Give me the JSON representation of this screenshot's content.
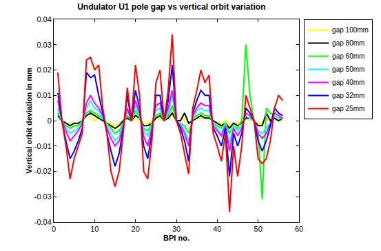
{
  "chart_data": {
    "type": "line",
    "title": "Undulator U1 pole gap vs vertical orbit variation",
    "x_label": "BPI no.",
    "y_label": "Vertical orbit deviation in mm",
    "x": [
      1,
      2,
      3,
      4,
      5,
      6,
      7,
      8,
      9,
      10,
      11,
      12,
      13,
      14,
      15,
      16,
      17,
      18,
      19,
      20,
      21,
      22,
      23,
      24,
      25,
      26,
      27,
      28,
      29,
      30,
      31,
      32,
      33,
      34,
      35,
      36,
      37,
      38,
      39,
      40,
      41,
      42,
      43,
      44,
      45,
      46,
      47,
      48,
      49,
      50,
      51,
      52,
      53,
      54,
      55,
      56
    ],
    "xlim": [
      0,
      60
    ],
    "xticks": [
      0,
      10,
      20,
      30,
      40,
      50,
      60
    ],
    "ylim": [
      -0.04,
      0.04
    ],
    "yticks": [
      -0.04,
      -0.03,
      -0.02,
      -0.01,
      0,
      0.01,
      0.02,
      0.03,
      0.04
    ],
    "grid": false,
    "legend": "top right",
    "series": [
      {
        "name": "gap 100mm",
        "color": "#ffff00",
        "values": [
          0.002,
          0.0,
          -0.001,
          -0.001,
          -0.001,
          -0.001,
          0.0,
          0.002,
          0.002,
          0.0,
          0.001,
          0.0,
          -0.001,
          -0.001,
          -0.002,
          -0.001,
          0.0,
          0.001,
          0.0,
          0.001,
          0.0,
          -0.001,
          -0.001,
          0.0,
          0.001,
          0.001,
          0.0,
          0.001,
          0.002,
          0.0,
          0.0,
          0.001,
          -0.001,
          0.0,
          0.001,
          0.001,
          0.001,
          0.001,
          0.0,
          -0.001,
          -0.001,
          0.0,
          -0.002,
          -0.001,
          -0.001,
          0.0,
          0.001,
          0.0,
          0.0,
          -0.001,
          -0.001,
          0.001,
          0.0,
          0.0,
          0.0,
          0.0
        ]
      },
      {
        "name": "gap 80mm",
        "color": "#000000",
        "values": [
          0.002,
          0.0,
          -0.001,
          -0.002,
          -0.001,
          -0.001,
          0.0,
          0.002,
          0.003,
          0.002,
          0.001,
          0.0,
          -0.001,
          -0.002,
          -0.003,
          -0.002,
          0.0,
          0.001,
          0.0,
          0.002,
          0.001,
          -0.002,
          -0.002,
          -0.001,
          0.001,
          0.002,
          0.0,
          0.001,
          0.003,
          0.0,
          0.0,
          0.003,
          -0.001,
          0.0,
          0.001,
          0.002,
          0.001,
          0.001,
          0.0,
          -0.001,
          -0.002,
          -0.001,
          -0.003,
          -0.001,
          -0.002,
          -0.001,
          0.001,
          0.001,
          0.0,
          -0.002,
          -0.002,
          0.003,
          0.0,
          0.001,
          0.0,
          0.001
        ]
      },
      {
        "name": "gap 60mm",
        "color": "#00ff00",
        "values": [
          0.003,
          0.0,
          -0.002,
          -0.003,
          -0.002,
          -0.002,
          0.0,
          0.003,
          0.004,
          0.003,
          0.002,
          0.001,
          -0.001,
          -0.003,
          -0.005,
          -0.004,
          -0.001,
          0.002,
          0.0,
          0.004,
          0.001,
          -0.003,
          -0.004,
          -0.001,
          0.002,
          0.003,
          0.0,
          0.002,
          0.006,
          0.0,
          -0.001,
          -0.002,
          -0.005,
          0.001,
          0.002,
          0.003,
          0.002,
          0.002,
          -0.001,
          -0.002,
          -0.003,
          -0.001,
          -0.005,
          -0.002,
          -0.003,
          0.0,
          0.03,
          0.01,
          0.0,
          -0.005,
          -0.031,
          0.005,
          0.003,
          0.002,
          0.001,
          0.001
        ]
      },
      {
        "name": "gap 50mm",
        "color": "#00ffff",
        "values": [
          0.005,
          0.0,
          -0.003,
          -0.005,
          -0.004,
          -0.003,
          -0.001,
          0.005,
          0.008,
          0.005,
          0.004,
          0.001,
          -0.002,
          -0.005,
          -0.008,
          -0.006,
          -0.001,
          0.004,
          0.0,
          0.006,
          0.002,
          -0.004,
          -0.006,
          -0.002,
          0.004,
          0.005,
          0.0,
          0.003,
          0.01,
          0.0,
          -0.001,
          -0.004,
          -0.008,
          0.001,
          0.004,
          0.005,
          0.004,
          0.004,
          -0.001,
          -0.003,
          -0.005,
          -0.001,
          -0.009,
          -0.002,
          -0.004,
          -0.002,
          0.002,
          0.001,
          0.0,
          -0.004,
          -0.005,
          -0.003,
          -0.001,
          0.002,
          0.001,
          0.001
        ]
      },
      {
        "name": "gap 40mm",
        "color": "#ff00ff",
        "values": [
          0.008,
          0.0,
          -0.004,
          -0.008,
          -0.006,
          -0.004,
          -0.001,
          0.007,
          0.01,
          0.007,
          0.005,
          0.002,
          -0.003,
          -0.007,
          -0.01,
          -0.008,
          -0.002,
          0.005,
          0.0,
          0.008,
          0.003,
          -0.006,
          -0.01,
          -0.003,
          0.006,
          0.007,
          0.0,
          0.005,
          0.012,
          0.0,
          -0.002,
          -0.005,
          -0.01,
          0.002,
          0.005,
          0.007,
          0.006,
          0.006,
          -0.002,
          -0.004,
          -0.006,
          -0.002,
          -0.012,
          -0.003,
          -0.006,
          -0.003,
          0.003,
          0.002,
          0.0,
          -0.005,
          -0.007,
          -0.005,
          -0.001,
          0.003,
          0.002,
          0.001
        ]
      },
      {
        "name": "gap 32mm",
        "color": "#0000ff",
        "values": [
          0.011,
          0.0,
          -0.008,
          -0.015,
          -0.012,
          -0.008,
          -0.003,
          0.019,
          0.017,
          0.018,
          0.01,
          0.003,
          -0.005,
          -0.012,
          -0.018,
          -0.013,
          -0.003,
          0.01,
          0.0,
          0.012,
          0.005,
          -0.01,
          -0.015,
          -0.005,
          0.01,
          0.01,
          0.0,
          0.008,
          0.022,
          0.0,
          -0.003,
          -0.008,
          -0.016,
          0.003,
          0.008,
          0.012,
          0.01,
          0.01,
          -0.003,
          -0.006,
          -0.01,
          -0.003,
          -0.022,
          -0.005,
          -0.01,
          -0.005,
          0.005,
          0.003,
          0.0,
          -0.008,
          -0.012,
          -0.008,
          -0.002,
          0.005,
          0.003,
          0.002
        ]
      },
      {
        "name": "gap 25mm",
        "color": "#ff0000",
        "values": [
          0.019,
          0.0,
          -0.01,
          -0.023,
          -0.015,
          -0.01,
          -0.005,
          0.024,
          0.025,
          0.02,
          0.022,
          0.005,
          -0.005,
          -0.02,
          -0.026,
          -0.02,
          -0.005,
          0.013,
          0.0,
          0.022,
          0.01,
          -0.02,
          -0.023,
          -0.008,
          0.015,
          0.02,
          0.0,
          0.012,
          0.034,
          0.0,
          -0.005,
          -0.013,
          -0.021,
          0.005,
          0.012,
          0.02,
          0.015,
          0.018,
          -0.005,
          -0.01,
          -0.016,
          -0.005,
          -0.036,
          -0.01,
          -0.022,
          -0.01,
          0.01,
          0.005,
          0.0,
          -0.015,
          -0.017,
          -0.015,
          -0.008,
          0.005,
          0.01,
          0.008
        ]
      }
    ]
  }
}
